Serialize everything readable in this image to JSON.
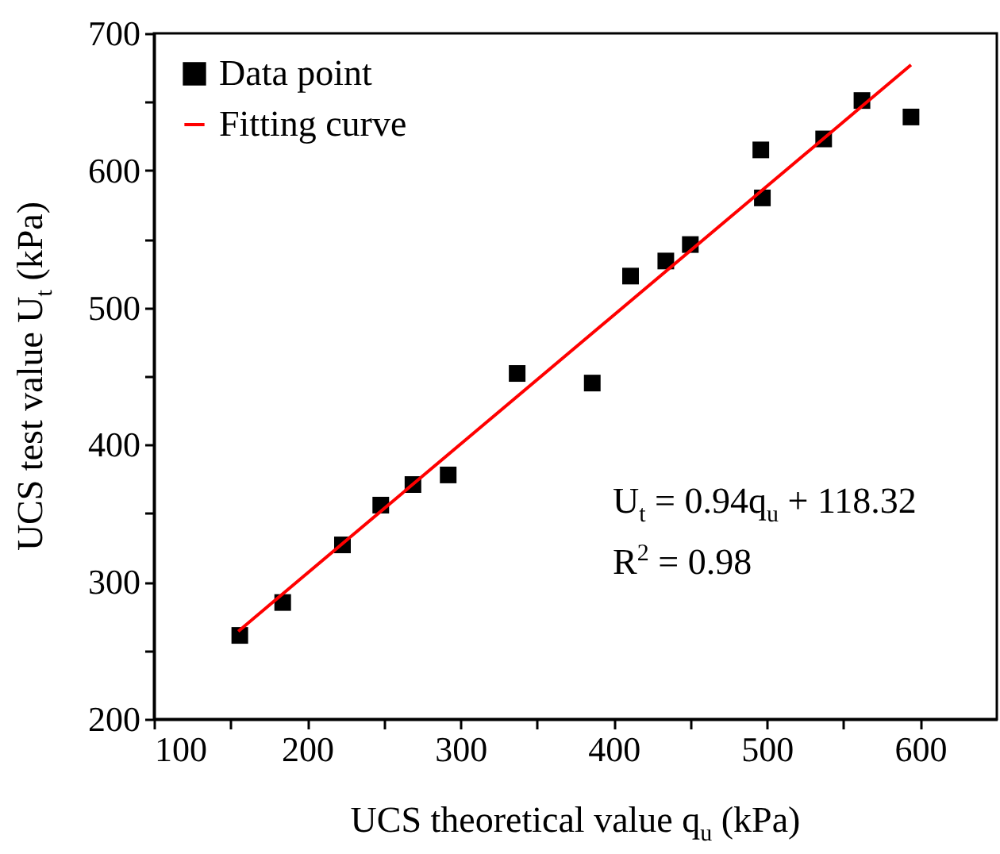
{
  "chart_data": {
    "type": "scatter",
    "xlabel": "UCS theoretical value q$_{u}$ (kPa)",
    "ylabel": "UCS test value U$_{t}$ (kPa)",
    "xlim": [
      100,
      650
    ],
    "ylim": [
      200,
      700
    ],
    "xticks": [
      100,
      {
        "value": 150,
        "label": null
      },
      200,
      {
        "value": 250,
        "label": null
      },
      300,
      {
        "value": 350,
        "label": null
      },
      400,
      {
        "value": 450,
        "label": null
      },
      500,
      {
        "value": 550,
        "label": null
      },
      600
    ],
    "yticks": [
      200,
      {
        "value": 250,
        "label": null
      },
      300,
      {
        "value": 350,
        "label": null
      },
      400,
      {
        "value": 450,
        "label": null
      },
      500,
      {
        "value": 550,
        "label": null
      },
      600,
      {
        "value": 650,
        "label": null
      },
      700
    ],
    "grid": false,
    "legend": "top left",
    "marker": "square",
    "series": [
      {
        "name": "Data point",
        "color": "#000000",
        "x": [
          156,
          184,
          223,
          248,
          269,
          292,
          337,
          386,
          411,
          434,
          450,
          496,
          497,
          537,
          562,
          594
        ],
        "values": [
          261,
          285,
          327,
          356,
          371,
          378,
          452,
          445,
          523,
          534,
          546,
          615,
          580,
          623,
          651,
          639
        ]
      },
      {
        "name": "Fitting curve",
        "type": "line",
        "color": "#ff0000",
        "line_style": "solid",
        "marker": "none",
        "x": [
          155,
          594
        ],
        "values": [
          264,
          677
        ]
      }
    ],
    "annotations": [
      "U$_{t}$ = 0.94q$_{u}$ + 118.32",
      "R$^{2}$ = 0.98"
    ]
  }
}
